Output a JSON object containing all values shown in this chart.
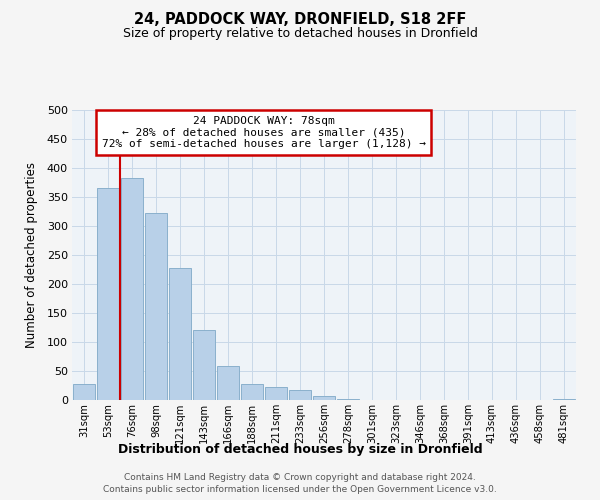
{
  "title": "24, PADDOCK WAY, DRONFIELD, S18 2FF",
  "subtitle": "Size of property relative to detached houses in Dronfield",
  "xlabel": "Distribution of detached houses by size in Dronfield",
  "ylabel": "Number of detached properties",
  "bar_labels": [
    "31sqm",
    "53sqm",
    "76sqm",
    "98sqm",
    "121sqm",
    "143sqm",
    "166sqm",
    "188sqm",
    "211sqm",
    "233sqm",
    "256sqm",
    "278sqm",
    "301sqm",
    "323sqm",
    "346sqm",
    "368sqm",
    "391sqm",
    "413sqm",
    "436sqm",
    "458sqm",
    "481sqm"
  ],
  "bar_values": [
    28,
    365,
    383,
    323,
    227,
    121,
    58,
    28,
    23,
    17,
    7,
    1,
    0,
    0,
    0,
    0,
    0,
    0,
    0,
    0,
    2
  ],
  "bar_color": "#b8d0e8",
  "bar_edge_color": "#8ab0cc",
  "grid_color": "#c8d8e8",
  "background_color": "#eef3f8",
  "fig_background": "#f5f5f5",
  "annotation_line1": "24 PADDOCK WAY: 78sqm",
  "annotation_line2": "← 28% of detached houses are smaller (435)",
  "annotation_line3": "72% of semi-detached houses are larger (1,128) →",
  "annotation_box_facecolor": "#ffffff",
  "annotation_box_edgecolor": "#cc0000",
  "vline_color": "#cc0000",
  "vline_index": 2,
  "ylim": [
    0,
    500
  ],
  "yticks": [
    0,
    50,
    100,
    150,
    200,
    250,
    300,
    350,
    400,
    450,
    500
  ],
  "footnote1": "Contains HM Land Registry data © Crown copyright and database right 2024.",
  "footnote2": "Contains public sector information licensed under the Open Government Licence v3.0."
}
